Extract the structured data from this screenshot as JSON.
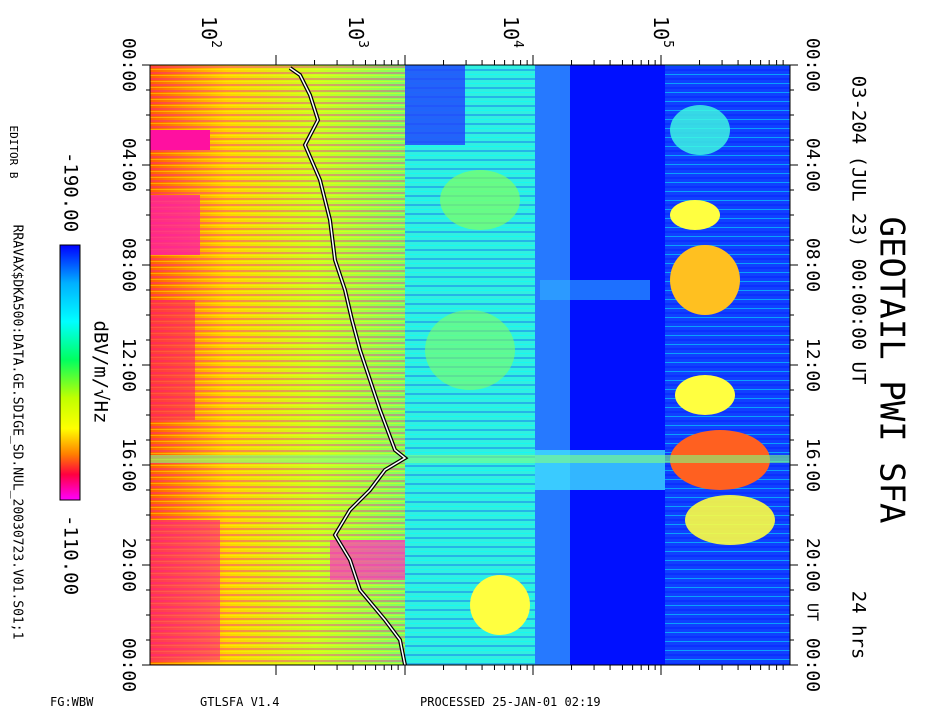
{
  "header": {
    "title": "GEOTAIL PWI SFA",
    "date": "03-204 (JUL 23) 00:00:00 UT",
    "duration": "24 hrs"
  },
  "time_axis": {
    "ticks": [
      "00:00",
      "04:00",
      "08:00",
      "12:00",
      "16:00",
      "20:00",
      "00:00"
    ],
    "unit": "UT"
  },
  "frequency_axis": {
    "ticks": [
      {
        "base": "10",
        "exp": "2"
      },
      {
        "base": "10",
        "exp": "3"
      },
      {
        "base": "10",
        "exp": "4"
      },
      {
        "base": "10",
        "exp": "5"
      }
    ]
  },
  "colorbar": {
    "min": "-190.00",
    "max": "-110.00",
    "unit": "dBV/m/√Hz"
  },
  "side": {
    "editor": "EDITOR B",
    "file": "RRAVAX$DKA500:DATA.GE.SDIGE_SD.NUL_20030723.V01.S01;1"
  },
  "footer": {
    "fg": "FG:WBW",
    "program": "GTLSFA  V1.4",
    "processed": "PROCESSED 25-JAN-01  02:19"
  }
}
